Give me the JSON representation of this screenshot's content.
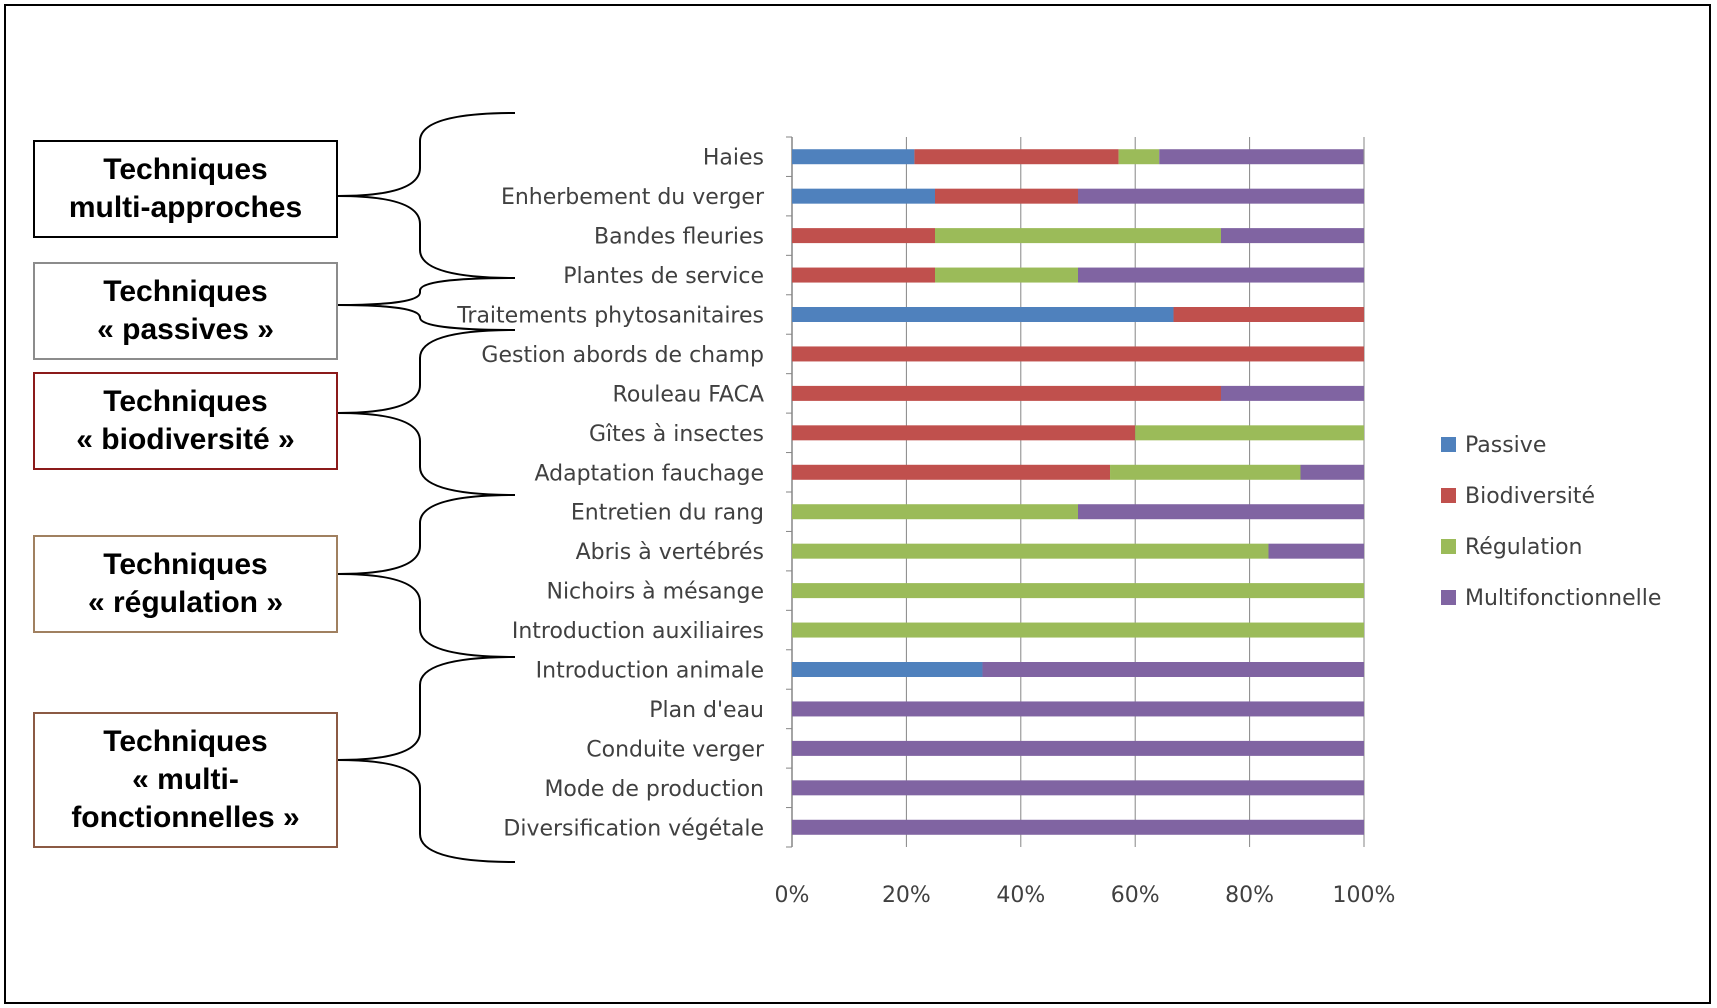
{
  "groups": [
    {
      "line1": "Techniques",
      "line2": "multi-approches",
      "line3": "",
      "border_color": "#000000"
    },
    {
      "line1": "Techniques",
      "line2": "« passives »",
      "line3": "",
      "border_color": "#8c8c8c"
    },
    {
      "line1": "Techniques",
      "line2": "« biodiversité »",
      "line3": "",
      "border_color": "#8b1a1a"
    },
    {
      "line1": "Techniques",
      "line2": "« régulation »",
      "line3": "",
      "border_color": "#a08060"
    },
    {
      "line1": "Techniques",
      "line2": "« multi-",
      "line3": "fonctionnelles »",
      "border_color": "#8b5a44"
    }
  ],
  "chart_data": {
    "type": "bar",
    "orientation": "horizontal",
    "stacked": true,
    "percent_stacked": true,
    "categories": [
      "Haies",
      "Enherbement du verger",
      "Bandes fleuries",
      "Plantes de service",
      "Traitements phytosanitaires",
      "Gestion abords de champ",
      "Rouleau FACA",
      "Gîtes à insectes",
      "Adaptation fauchage",
      "Entretien du rang",
      "Abris à vertébrés",
      "Nichoirs à mésange",
      "Introduction auxiliaires",
      "Introduction animale",
      "Plan d'eau",
      "Conduite verger",
      "Mode de production",
      "Diversification végétale"
    ],
    "series": [
      {
        "name": "Passive",
        "color": "#4f81bd",
        "values": [
          21.4,
          25,
          0,
          0,
          66.7,
          0,
          0,
          0,
          0,
          0,
          0,
          0,
          0,
          33.3,
          0,
          0,
          0,
          0
        ]
      },
      {
        "name": "Biodiversité",
        "color": "#c0504d",
        "values": [
          35.7,
          25,
          25,
          25,
          33.3,
          100,
          75,
          60,
          55.6,
          0,
          0,
          0,
          0,
          0,
          0,
          0,
          0,
          0
        ]
      },
      {
        "name": "Régulation",
        "color": "#9bbb59",
        "values": [
          7.1,
          0,
          50,
          25,
          0,
          0,
          0,
          40,
          33.3,
          50,
          83.3,
          100,
          100,
          0,
          0,
          0,
          0,
          0
        ]
      },
      {
        "name": "Multifonctionnelle",
        "color": "#8064a2",
        "values": [
          35.7,
          50,
          25,
          50,
          0,
          0,
          25,
          0,
          11.1,
          50,
          16.7,
          0,
          0,
          66.7,
          100,
          100,
          100,
          100
        ]
      }
    ],
    "xlim": [
      0,
      100
    ],
    "x_ticks": [
      "0%",
      "20%",
      "40%",
      "60%",
      "80%",
      "100%"
    ],
    "grid": true,
    "legend_position": "right"
  }
}
